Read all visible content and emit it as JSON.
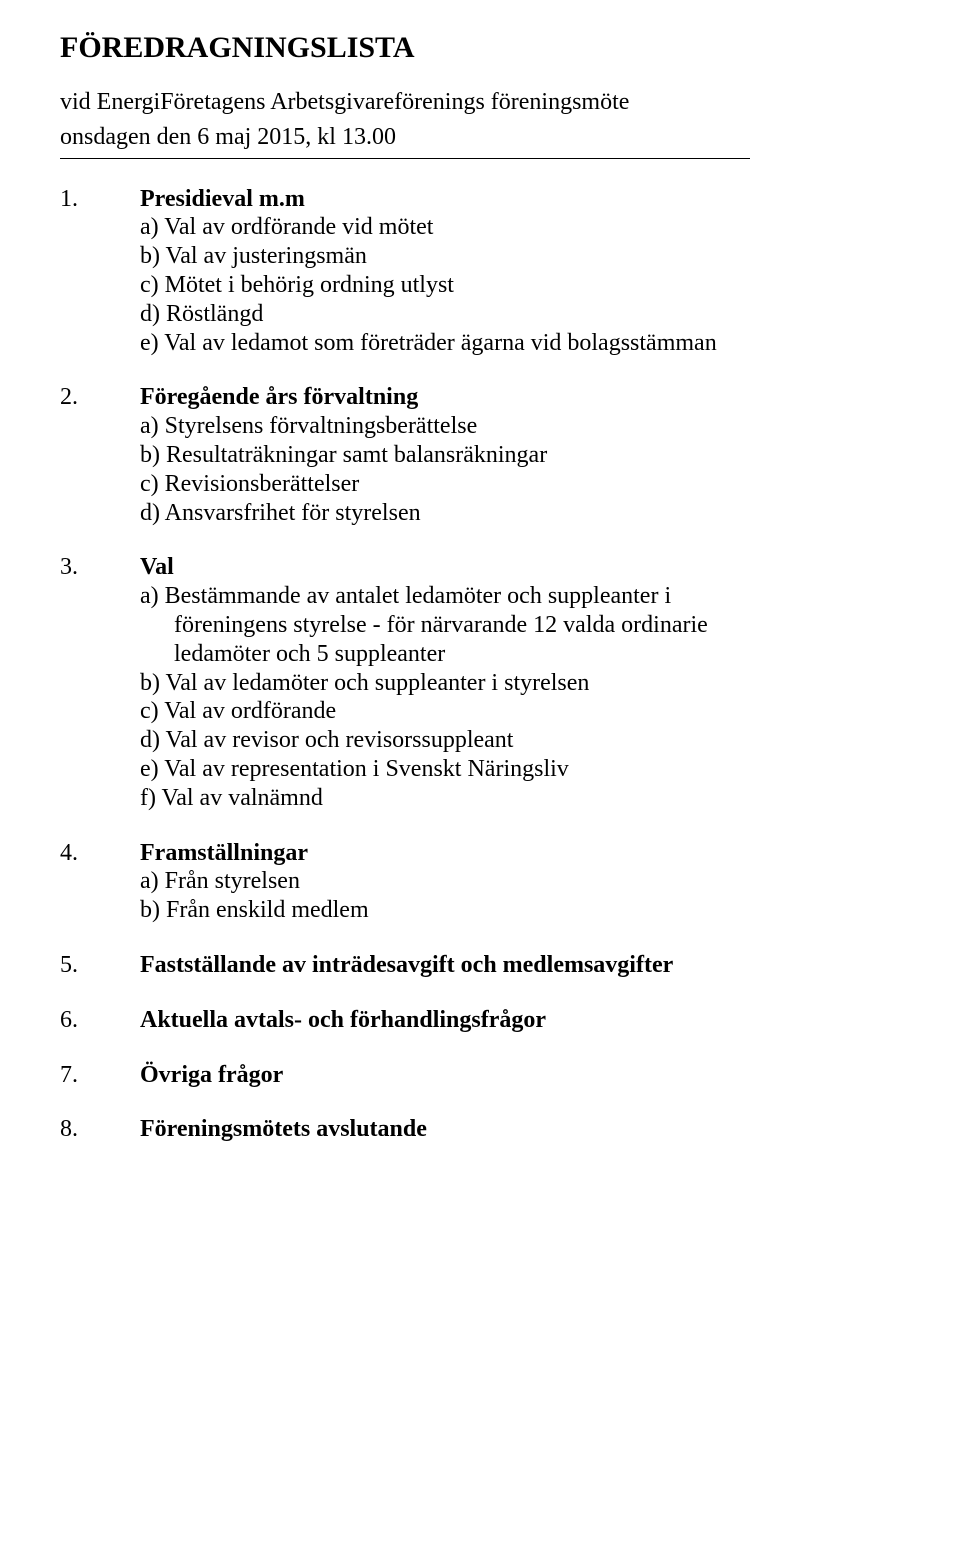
{
  "title": "FÖREDRAGNINGSLISTA",
  "subtitle_line1": "vid EnergiFöretagens Arbetsgivareförenings föreningsmöte",
  "subtitle_line2": "onsdagen den 6 maj 2015, kl 13.00",
  "items": {
    "i1": {
      "num": "1.",
      "heading": "Presidieval m.m",
      "a": "a)  Val av ordförande vid mötet",
      "b": "b)  Val av justeringsmän",
      "c": "c)  Mötet i behörig ordning utlyst",
      "d": "d)  Röstlängd",
      "e": "e)  Val av ledamot som företräder ägarna vid bolagsstämman"
    },
    "i2": {
      "num": "2.",
      "heading": "Föregående års förvaltning",
      "a": "a)  Styrelsens förvaltningsberättelse",
      "b": "b)  Resultaträkningar samt balansräkningar",
      "c": "c)  Revisionsberättelser",
      "d": "d)  Ansvarsfrihet för styrelsen"
    },
    "i3": {
      "num": "3.",
      "heading": "Val",
      "a": "a) Bestämmande av antalet ledamöter och suppleanter i",
      "a2": "föreningens styrelse - för närvarande 12 valda ordinarie",
      "a3": "ledamöter och 5 suppleanter",
      "b": "b) Val av ledamöter och suppleanter i styrelsen",
      "c": "c) Val av ordförande",
      "d": "d) Val av revisor och revisorssuppleant",
      "e": "e)  Val av representation i Svenskt Näringsliv",
      "f": "f)  Val av valnämnd"
    },
    "i4": {
      "num": "4.",
      "heading": "Framställningar",
      "a": "a)  Från styrelsen",
      "b": "b)  Från enskild medlem"
    },
    "i5": {
      "num": "5.",
      "heading": "Fastställande av inträdesavgift och medlemsavgifter"
    },
    "i6": {
      "num": "6.",
      "heading": "Aktuella avtals- och förhandlingsfrågor"
    },
    "i7": {
      "num": "7.",
      "heading": "Övriga frågor"
    },
    "i8": {
      "num": "8.",
      "heading": "Föreningsmötets avslutande"
    }
  }
}
